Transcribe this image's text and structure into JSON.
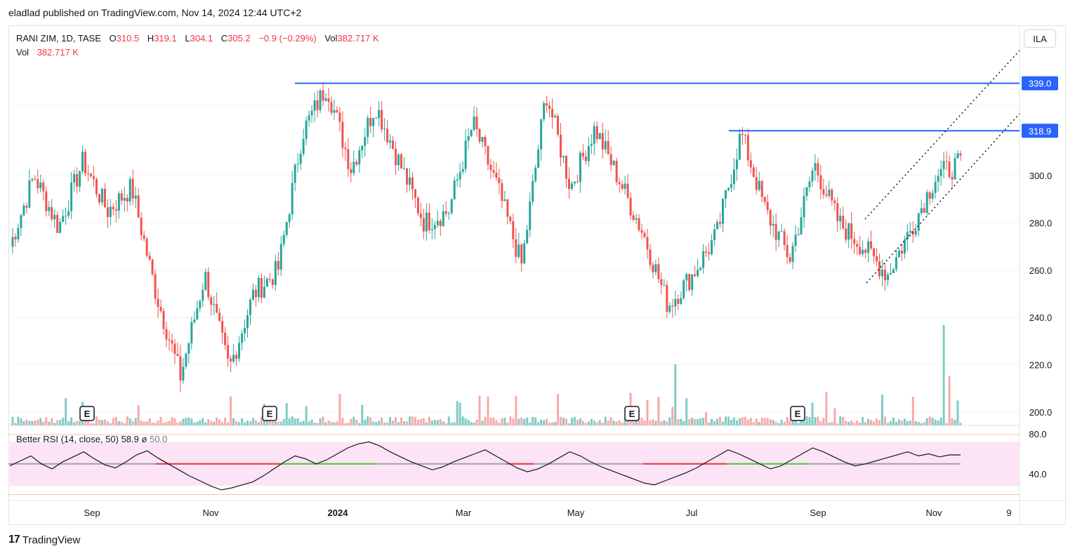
{
  "header": {
    "publisher": "eladlad published on TradingView.com, Nov 14, 2024 12:44 UTC+2"
  },
  "symbol": {
    "name": "RANI ZIM, 1D, TASE",
    "open_label": "O",
    "open": "310.5",
    "high_label": "H",
    "high": "319.1",
    "low_label": "L",
    "low": "304.1",
    "close_label": "C",
    "close": "305.2",
    "change": "−0.9 (−0.29%)",
    "vol_label": "Vol",
    "vol": "382.717 K",
    "vol_row_label": "Vol",
    "vol_row_value": "382.717 K"
  },
  "currency_button": "ILA",
  "rsi": {
    "label": "Better RSI (14, close, 50)",
    "value": "58.9",
    "symbol": "ø",
    "mid": "50.0"
  },
  "footer": {
    "brand": "TradingView",
    "logo": "17"
  },
  "colors": {
    "up": "#26a69a",
    "down": "#ef5350",
    "vol_up": "#80cbc4",
    "vol_down": "#f7a9a7",
    "level": "#2962ff",
    "rsi_band": "#fce4f6",
    "rsi_line": "#131722"
  },
  "chart_data": [
    {
      "type": "candlestick",
      "symbol": "RANI ZIM",
      "interval": "1D",
      "exchange": "TASE",
      "y_axis": {
        "range": [
          195,
          350
        ],
        "ticks": [
          200,
          220,
          240,
          260,
          280,
          300
        ]
      },
      "x_axis": {
        "ticks": [
          "Sep",
          "Nov",
          "2024",
          "Mar",
          "May",
          "Jul",
          "Sep",
          "Nov",
          "9"
        ]
      },
      "horizontal_levels": [
        {
          "price": 339.0,
          "label": "339.0"
        },
        {
          "price": 318.9,
          "label": "318.9"
        }
      ],
      "channel_lines": "dotted ascending channel from Oct 2024 to Nov 2024",
      "earnings_markers": [
        "Oct 2023",
        "Dec 2023",
        "Jun 2024",
        "Aug 2024"
      ],
      "earnings_label": "E",
      "price_path_anchors": [
        {
          "x": "Jul 2023",
          "y": 270
        },
        {
          "x": "Aug 2023",
          "y": 300
        },
        {
          "x": "Sep 2023",
          "y": 278
        },
        {
          "x": "Sep 2023",
          "y": 306
        },
        {
          "x": "Oct 2023",
          "y": 285
        },
        {
          "x": "Oct 2023",
          "y": 295
        },
        {
          "x": "Oct 2023",
          "y": 250
        },
        {
          "x": "Nov 2023",
          "y": 215
        },
        {
          "x": "Nov 2023",
          "y": 258
        },
        {
          "x": "Nov 2023",
          "y": 218
        },
        {
          "x": "Dec 2023",
          "y": 250
        },
        {
          "x": "Dec 2023",
          "y": 260
        },
        {
          "x": "Dec 2023",
          "y": 318
        },
        {
          "x": "Jan 2024",
          "y": 338
        },
        {
          "x": "Jan 2024",
          "y": 303
        },
        {
          "x": "Jan 2024",
          "y": 330
        },
        {
          "x": "Feb 2024",
          "y": 305
        },
        {
          "x": "Feb 2024",
          "y": 280
        },
        {
          "x": "Mar 2024",
          "y": 285
        },
        {
          "x": "Mar 2024",
          "y": 322
        },
        {
          "x": "Apr 2024",
          "y": 295
        },
        {
          "x": "Apr 2024",
          "y": 262
        },
        {
          "x": "Apr 2024",
          "y": 335
        },
        {
          "x": "May 2024",
          "y": 295
        },
        {
          "x": "May 2024",
          "y": 320
        },
        {
          "x": "Jun 2024",
          "y": 298
        },
        {
          "x": "Jun 2024",
          "y": 275
        },
        {
          "x": "Jun 2024",
          "y": 245
        },
        {
          "x": "Jul 2024",
          "y": 258
        },
        {
          "x": "Jul 2024",
          "y": 275
        },
        {
          "x": "Jul 2024",
          "y": 318
        },
        {
          "x": "Aug 2024",
          "y": 285
        },
        {
          "x": "Aug 2024",
          "y": 265
        },
        {
          "x": "Aug 2024",
          "y": 305
        },
        {
          "x": "Sep 2024",
          "y": 280
        },
        {
          "x": "Sep 2024",
          "y": 270
        },
        {
          "x": "Oct 2024",
          "y": 258
        },
        {
          "x": "Oct 2024",
          "y": 278
        },
        {
          "x": "Nov 2024",
          "y": 300
        },
        {
          "x": "Nov 2024",
          "y": 305
        }
      ]
    },
    {
      "type": "line",
      "name": "Better RSI (14, close, 50)",
      "y_axis": {
        "ticks": [
          80,
          40
        ]
      },
      "values": [
        48,
        53,
        58,
        50,
        45,
        52,
        57,
        62,
        55,
        49,
        46,
        52,
        59,
        63,
        56,
        50,
        44,
        38,
        33,
        28,
        24,
        26,
        29,
        32,
        38,
        45,
        52,
        58,
        55,
        50,
        54,
        60,
        66,
        70,
        72,
        68,
        62,
        57,
        52,
        48,
        44,
        47,
        52,
        56,
        60,
        64,
        58,
        52,
        46,
        42,
        45,
        50,
        56,
        62,
        58,
        52,
        47,
        43,
        39,
        35,
        31,
        29,
        33,
        37,
        41,
        46,
        52,
        58,
        64,
        60,
        55,
        50,
        45,
        48,
        54,
        60,
        66,
        62,
        57,
        52,
        48,
        50,
        53,
        56,
        59,
        62,
        58,
        60,
        57,
        59,
        58.9
      ]
    }
  ]
}
